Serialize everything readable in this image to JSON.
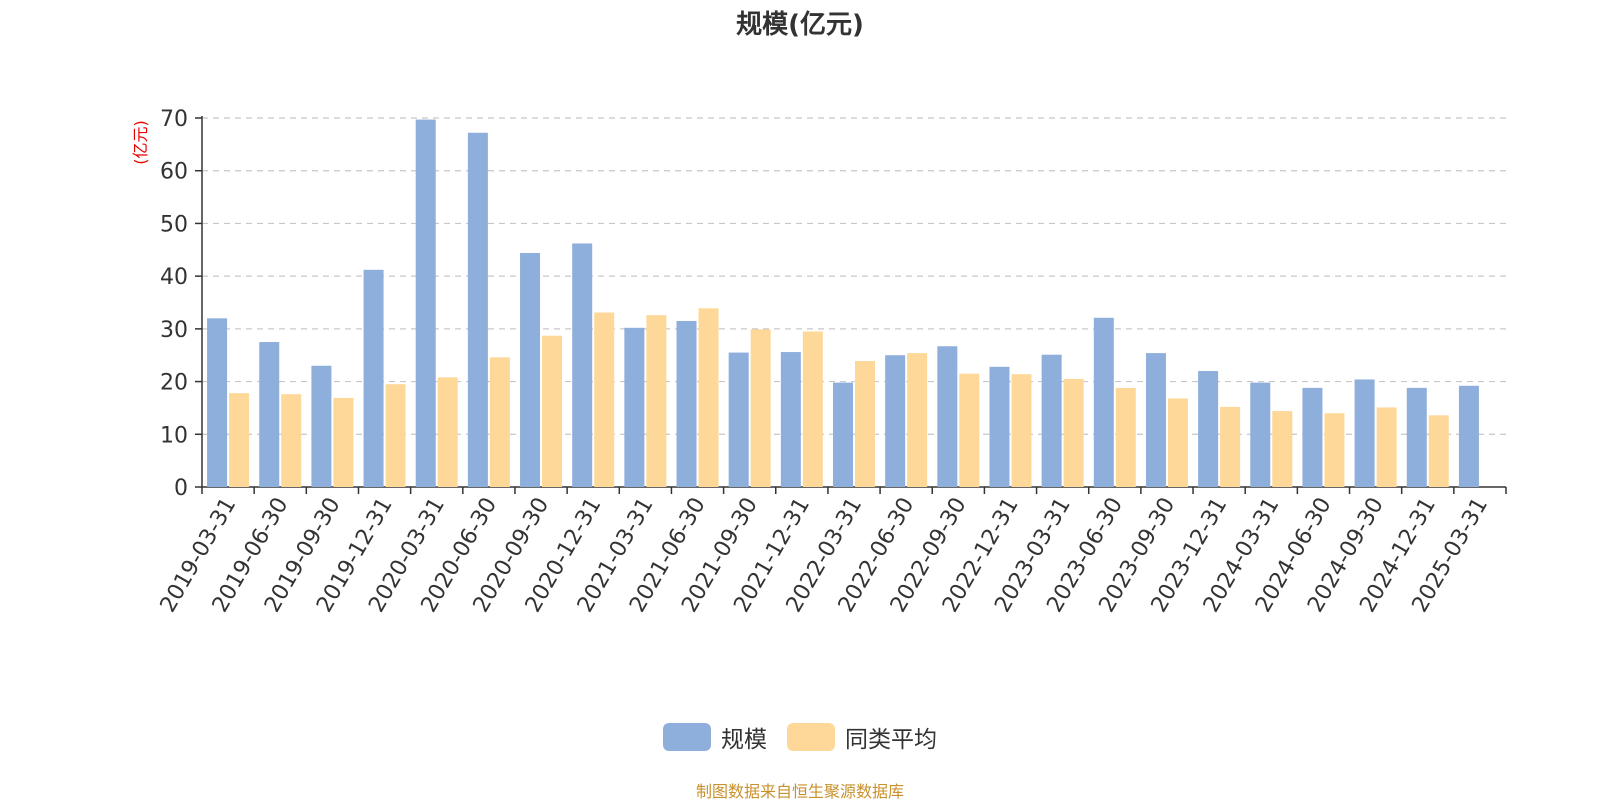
{
  "chart_data": {
    "type": "bar",
    "title": "规模(亿元)",
    "ylabel": "(亿元)",
    "ylim": [
      0,
      70
    ],
    "yticks": [
      0,
      10,
      20,
      30,
      40,
      50,
      60,
      70
    ],
    "grid": true,
    "legend_position": "bottom-center",
    "categories": [
      "2019-03-31",
      "2019-06-30",
      "2019-09-30",
      "2019-12-31",
      "2020-03-31",
      "2020-06-30",
      "2020-09-30",
      "2020-12-31",
      "2021-03-31",
      "2021-06-30",
      "2021-09-30",
      "2021-12-31",
      "2022-03-31",
      "2022-06-30",
      "2022-09-30",
      "2022-12-31",
      "2023-03-31",
      "2023-06-30",
      "2023-09-30",
      "2023-12-31",
      "2024-03-31",
      "2024-06-30",
      "2024-09-30",
      "2024-12-31",
      "2025-03-31"
    ],
    "series": [
      {
        "name": "规模",
        "color": "#8eaedb",
        "values": [
          32.0,
          27.5,
          23.0,
          41.2,
          69.7,
          67.2,
          44.4,
          46.2,
          30.2,
          31.5,
          25.5,
          25.6,
          19.8,
          25.0,
          26.7,
          22.8,
          25.1,
          32.1,
          25.4,
          22.0,
          19.8,
          18.8,
          20.4,
          18.8,
          19.2
        ]
      },
      {
        "name": "同类平均",
        "color": "#fed898",
        "values": [
          17.8,
          17.6,
          16.9,
          19.5,
          20.8,
          24.6,
          28.7,
          33.1,
          32.6,
          33.9,
          29.9,
          29.5,
          23.9,
          25.4,
          21.5,
          21.4,
          20.5,
          18.8,
          16.8,
          15.2,
          14.4,
          14.0,
          15.1,
          13.6,
          null
        ]
      }
    ]
  },
  "footer": "制图数据来自恒生聚源数据库"
}
